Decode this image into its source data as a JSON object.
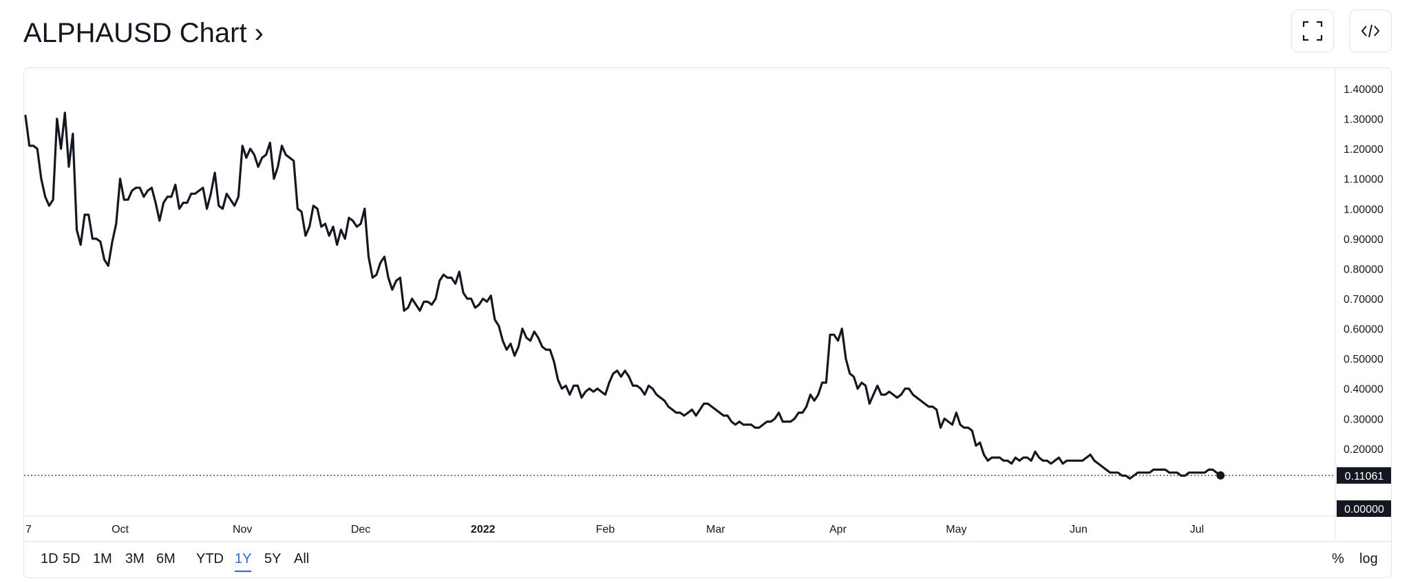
{
  "header": {
    "title": "ALPHAUSD Chart ›",
    "fullscreen_icon": "fullscreen-icon",
    "embed_icon": "code-embed-icon"
  },
  "timeframes": [
    {
      "label": "1D",
      "active": false
    },
    {
      "label": "5D",
      "active": false
    },
    {
      "label": "1M",
      "active": false
    },
    {
      "label": "3M",
      "active": false
    },
    {
      "label": "6M",
      "active": false
    },
    {
      "label": "YTD",
      "active": false
    },
    {
      "label": "1Y",
      "active": true
    },
    {
      "label": "5Y",
      "active": false
    },
    {
      "label": "All",
      "active": false
    }
  ],
  "scale_options": {
    "percent": "%",
    "log": "log"
  },
  "colors": {
    "line": "#131722",
    "grid_border": "#e0e3eb",
    "active_tab": "#2962ff",
    "price_tag_bg": "#131722",
    "price_tag_text": "#ffffff"
  },
  "chart_data": {
    "type": "line",
    "symbol": "ALPHAUSD",
    "ylim": [
      0.0,
      1.4
    ],
    "y_ticks": [
      "1.40000",
      "1.30000",
      "1.20000",
      "1.10000",
      "1.00000",
      "0.90000",
      "0.80000",
      "0.70000",
      "0.60000",
      "0.50000",
      "0.40000",
      "0.30000",
      "0.20000",
      "0.00000"
    ],
    "y_tick_values": [
      1.4,
      1.3,
      1.2,
      1.1,
      1.0,
      0.9,
      0.8,
      0.7,
      0.6,
      0.5,
      0.4,
      0.3,
      0.2,
      0.0
    ],
    "x_ticks": [
      {
        "label": "7",
        "day": 0,
        "bold": false
      },
      {
        "label": "Oct",
        "day": 24,
        "bold": false
      },
      {
        "label": "Nov",
        "day": 55,
        "bold": false
      },
      {
        "label": "Dec",
        "day": 85,
        "bold": false
      },
      {
        "label": "2022",
        "day": 116,
        "bold": true
      },
      {
        "label": "Feb",
        "day": 147,
        "bold": false
      },
      {
        "label": "Mar",
        "day": 175,
        "bold": false
      },
      {
        "label": "Apr",
        "day": 206,
        "bold": false
      },
      {
        "label": "May",
        "day": 236,
        "bold": false
      },
      {
        "label": "Jun",
        "day": 267,
        "bold": false
      },
      {
        "label": "Jul",
        "day": 297,
        "bold": false
      }
    ],
    "x_range_days": [
      0,
      319
    ],
    "last_price": 0.11061,
    "last_price_label": "0.11061",
    "zero_label": "0.00000",
    "points": [
      [
        0,
        1.31
      ],
      [
        1,
        1.21
      ],
      [
        2,
        1.21
      ],
      [
        3,
        1.2
      ],
      [
        4,
        1.1
      ],
      [
        5,
        1.04
      ],
      [
        6,
        1.01
      ],
      [
        7,
        1.03
      ],
      [
        8,
        1.3
      ],
      [
        9,
        1.2
      ],
      [
        10,
        1.32
      ],
      [
        11,
        1.14
      ],
      [
        12,
        1.25
      ],
      [
        13,
        0.93
      ],
      [
        14,
        0.88
      ],
      [
        15,
        0.98
      ],
      [
        16,
        0.98
      ],
      [
        17,
        0.9
      ],
      [
        18,
        0.9
      ],
      [
        19,
        0.89
      ],
      [
        20,
        0.83
      ],
      [
        21,
        0.81
      ],
      [
        22,
        0.89
      ],
      [
        23,
        0.95
      ],
      [
        24,
        1.1
      ],
      [
        25,
        1.03
      ],
      [
        26,
        1.03
      ],
      [
        27,
        1.06
      ],
      [
        28,
        1.07
      ],
      [
        29,
        1.07
      ],
      [
        30,
        1.04
      ],
      [
        31,
        1.06
      ],
      [
        32,
        1.07
      ],
      [
        33,
        1.02
      ],
      [
        34,
        0.96
      ],
      [
        35,
        1.02
      ],
      [
        36,
        1.04
      ],
      [
        37,
        1.04
      ],
      [
        38,
        1.08
      ],
      [
        39,
        1.0
      ],
      [
        40,
        1.02
      ],
      [
        41,
        1.02
      ],
      [
        42,
        1.05
      ],
      [
        43,
        1.05
      ],
      [
        44,
        1.06
      ],
      [
        45,
        1.07
      ],
      [
        46,
        1.0
      ],
      [
        47,
        1.05
      ],
      [
        48,
        1.12
      ],
      [
        49,
        1.01
      ],
      [
        50,
        1.0
      ],
      [
        51,
        1.05
      ],
      [
        52,
        1.03
      ],
      [
        53,
        1.01
      ],
      [
        54,
        1.04
      ],
      [
        55,
        1.21
      ],
      [
        56,
        1.17
      ],
      [
        57,
        1.2
      ],
      [
        58,
        1.18
      ],
      [
        59,
        1.14
      ],
      [
        60,
        1.17
      ],
      [
        61,
        1.18
      ],
      [
        62,
        1.22
      ],
      [
        63,
        1.1
      ],
      [
        64,
        1.14
      ],
      [
        65,
        1.21
      ],
      [
        66,
        1.18
      ],
      [
        67,
        1.17
      ],
      [
        68,
        1.16
      ],
      [
        69,
        1.0
      ],
      [
        70,
        0.99
      ],
      [
        71,
        0.91
      ],
      [
        72,
        0.94
      ],
      [
        73,
        1.01
      ],
      [
        74,
        1.0
      ],
      [
        75,
        0.94
      ],
      [
        76,
        0.95
      ],
      [
        77,
        0.91
      ],
      [
        78,
        0.94
      ],
      [
        79,
        0.88
      ],
      [
        80,
        0.93
      ],
      [
        81,
        0.9
      ],
      [
        82,
        0.97
      ],
      [
        83,
        0.96
      ],
      [
        84,
        0.94
      ],
      [
        85,
        0.95
      ],
      [
        86,
        1.0
      ],
      [
        87,
        0.84
      ],
      [
        88,
        0.77
      ],
      [
        89,
        0.78
      ],
      [
        90,
        0.82
      ],
      [
        91,
        0.84
      ],
      [
        92,
        0.77
      ],
      [
        93,
        0.73
      ],
      [
        94,
        0.76
      ],
      [
        95,
        0.77
      ],
      [
        96,
        0.66
      ],
      [
        97,
        0.67
      ],
      [
        98,
        0.7
      ],
      [
        99,
        0.68
      ],
      [
        100,
        0.66
      ],
      [
        101,
        0.69
      ],
      [
        102,
        0.69
      ],
      [
        103,
        0.68
      ],
      [
        104,
        0.7
      ],
      [
        105,
        0.76
      ],
      [
        106,
        0.78
      ],
      [
        107,
        0.77
      ],
      [
        108,
        0.77
      ],
      [
        109,
        0.75
      ],
      [
        110,
        0.79
      ],
      [
        111,
        0.72
      ],
      [
        112,
        0.7
      ],
      [
        113,
        0.7
      ],
      [
        114,
        0.67
      ],
      [
        115,
        0.68
      ],
      [
        116,
        0.7
      ],
      [
        117,
        0.69
      ],
      [
        118,
        0.71
      ],
      [
        119,
        0.63
      ],
      [
        120,
        0.61
      ],
      [
        121,
        0.56
      ],
      [
        122,
        0.53
      ],
      [
        123,
        0.55
      ],
      [
        124,
        0.51
      ],
      [
        125,
        0.54
      ],
      [
        126,
        0.6
      ],
      [
        127,
        0.57
      ],
      [
        128,
        0.56
      ],
      [
        129,
        0.59
      ],
      [
        130,
        0.57
      ],
      [
        131,
        0.54
      ],
      [
        132,
        0.53
      ],
      [
        133,
        0.53
      ],
      [
        134,
        0.49
      ],
      [
        135,
        0.43
      ],
      [
        136,
        0.4
      ],
      [
        137,
        0.41
      ],
      [
        138,
        0.38
      ],
      [
        139,
        0.41
      ],
      [
        140,
        0.41
      ],
      [
        141,
        0.37
      ],
      [
        142,
        0.39
      ],
      [
        143,
        0.4
      ],
      [
        144,
        0.39
      ],
      [
        145,
        0.4
      ],
      [
        146,
        0.39
      ],
      [
        147,
        0.38
      ],
      [
        148,
        0.42
      ],
      [
        149,
        0.45
      ],
      [
        150,
        0.46
      ],
      [
        151,
        0.44
      ],
      [
        152,
        0.46
      ],
      [
        153,
        0.44
      ],
      [
        154,
        0.41
      ],
      [
        155,
        0.41
      ],
      [
        156,
        0.4
      ],
      [
        157,
        0.38
      ],
      [
        158,
        0.41
      ],
      [
        159,
        0.4
      ],
      [
        160,
        0.38
      ],
      [
        161,
        0.37
      ],
      [
        162,
        0.36
      ],
      [
        163,
        0.34
      ],
      [
        164,
        0.33
      ],
      [
        165,
        0.32
      ],
      [
        166,
        0.32
      ],
      [
        167,
        0.31
      ],
      [
        168,
        0.32
      ],
      [
        169,
        0.33
      ],
      [
        170,
        0.31
      ],
      [
        171,
        0.33
      ],
      [
        172,
        0.35
      ],
      [
        173,
        0.35
      ],
      [
        174,
        0.34
      ],
      [
        175,
        0.33
      ],
      [
        176,
        0.32
      ],
      [
        177,
        0.31
      ],
      [
        178,
        0.31
      ],
      [
        179,
        0.29
      ],
      [
        180,
        0.28
      ],
      [
        181,
        0.29
      ],
      [
        182,
        0.28
      ],
      [
        183,
        0.28
      ],
      [
        184,
        0.28
      ],
      [
        185,
        0.27
      ],
      [
        186,
        0.27
      ],
      [
        187,
        0.28
      ],
      [
        188,
        0.29
      ],
      [
        189,
        0.29
      ],
      [
        190,
        0.3
      ],
      [
        191,
        0.32
      ],
      [
        192,
        0.29
      ],
      [
        193,
        0.29
      ],
      [
        194,
        0.29
      ],
      [
        195,
        0.3
      ],
      [
        196,
        0.32
      ],
      [
        197,
        0.32
      ],
      [
        198,
        0.34
      ],
      [
        199,
        0.38
      ],
      [
        200,
        0.36
      ],
      [
        201,
        0.38
      ],
      [
        202,
        0.42
      ],
      [
        203,
        0.42
      ],
      [
        204,
        0.58
      ],
      [
        205,
        0.58
      ],
      [
        206,
        0.56
      ],
      [
        207,
        0.6
      ],
      [
        208,
        0.5
      ],
      [
        209,
        0.45
      ],
      [
        210,
        0.44
      ],
      [
        211,
        0.4
      ],
      [
        212,
        0.42
      ],
      [
        213,
        0.41
      ],
      [
        214,
        0.35
      ],
      [
        215,
        0.38
      ],
      [
        216,
        0.41
      ],
      [
        217,
        0.38
      ],
      [
        218,
        0.38
      ],
      [
        219,
        0.39
      ],
      [
        220,
        0.38
      ],
      [
        221,
        0.37
      ],
      [
        222,
        0.38
      ],
      [
        223,
        0.4
      ],
      [
        224,
        0.4
      ],
      [
        225,
        0.38
      ],
      [
        226,
        0.37
      ],
      [
        227,
        0.36
      ],
      [
        228,
        0.35
      ],
      [
        229,
        0.34
      ],
      [
        230,
        0.34
      ],
      [
        231,
        0.33
      ],
      [
        232,
        0.27
      ],
      [
        233,
        0.3
      ],
      [
        234,
        0.29
      ],
      [
        235,
        0.28
      ],
      [
        236,
        0.32
      ],
      [
        237,
        0.28
      ],
      [
        238,
        0.27
      ],
      [
        239,
        0.27
      ],
      [
        240,
        0.26
      ],
      [
        241,
        0.21
      ],
      [
        242,
        0.22
      ],
      [
        243,
        0.18
      ],
      [
        244,
        0.16
      ],
      [
        245,
        0.17
      ],
      [
        246,
        0.17
      ],
      [
        247,
        0.17
      ],
      [
        248,
        0.16
      ],
      [
        249,
        0.16
      ],
      [
        250,
        0.15
      ],
      [
        251,
        0.17
      ],
      [
        252,
        0.16
      ],
      [
        253,
        0.17
      ],
      [
        254,
        0.17
      ],
      [
        255,
        0.16
      ],
      [
        256,
        0.19
      ],
      [
        257,
        0.17
      ],
      [
        258,
        0.16
      ],
      [
        259,
        0.16
      ],
      [
        260,
        0.15
      ],
      [
        261,
        0.16
      ],
      [
        262,
        0.17
      ],
      [
        263,
        0.15
      ],
      [
        264,
        0.16
      ],
      [
        265,
        0.16
      ],
      [
        266,
        0.16
      ],
      [
        267,
        0.16
      ],
      [
        268,
        0.16
      ],
      [
        269,
        0.17
      ],
      [
        270,
        0.18
      ],
      [
        271,
        0.16
      ],
      [
        272,
        0.15
      ],
      [
        273,
        0.14
      ],
      [
        274,
        0.13
      ],
      [
        275,
        0.12
      ],
      [
        276,
        0.12
      ],
      [
        277,
        0.12
      ],
      [
        278,
        0.11
      ],
      [
        279,
        0.11
      ],
      [
        280,
        0.1
      ],
      [
        281,
        0.11
      ],
      [
        282,
        0.12
      ],
      [
        283,
        0.12
      ],
      [
        284,
        0.12
      ],
      [
        285,
        0.12
      ],
      [
        286,
        0.13
      ],
      [
        287,
        0.13
      ],
      [
        288,
        0.13
      ],
      [
        289,
        0.13
      ],
      [
        290,
        0.12
      ],
      [
        291,
        0.12
      ],
      [
        292,
        0.12
      ],
      [
        293,
        0.11
      ],
      [
        294,
        0.11
      ],
      [
        295,
        0.12
      ],
      [
        296,
        0.12
      ],
      [
        297,
        0.12
      ],
      [
        298,
        0.12
      ],
      [
        299,
        0.12
      ],
      [
        300,
        0.13
      ],
      [
        301,
        0.13
      ],
      [
        302,
        0.12
      ],
      [
        303,
        0.11
      ]
    ]
  }
}
